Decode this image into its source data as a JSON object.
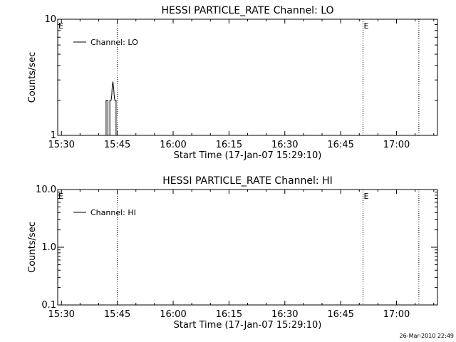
{
  "timestamp": "26-Mar-2010 22:49",
  "colors": {
    "background": "#ffffff",
    "foreground": "#000000"
  },
  "chart_data": [
    {
      "type": "line",
      "title": "HESSI PARTICLE_RATE Channel: LO",
      "xlabel": "Start Time (17-Jan-07 15:29:10)",
      "ylabel": "Counts/sec",
      "yscale": "log",
      "ylim": [
        1,
        10
      ],
      "yticks": [
        1,
        10
      ],
      "ytick_labels": [
        "1",
        "10"
      ],
      "xlim": [
        "15:29",
        "17:11"
      ],
      "xticks": [
        "15:30",
        "15:45",
        "16:00",
        "16:15",
        "16:30",
        "16:45",
        "17:00"
      ],
      "grid": false,
      "legend": {
        "position": "top-left",
        "entries": [
          "Channel: LO"
        ]
      },
      "vlines": [
        {
          "x": "15:45",
          "style": "dotted",
          "label": ""
        },
        {
          "x": "16:51",
          "style": "dotted",
          "label": "E"
        },
        {
          "x": "17:06",
          "style": "dotted",
          "label": ""
        }
      ],
      "edge_label": "E",
      "series": [
        {
          "name": "Channel: LO",
          "x": [
            "15:42:00",
            "15:42:00",
            "15:42:30",
            "15:42:30",
            "15:43:00",
            "15:43:00",
            "15:43:20",
            "15:43:30",
            "15:43:40",
            "15:43:50",
            "15:44:00",
            "15:44:10",
            "15:44:20",
            "15:44:40",
            "15:44:40",
            "15:45:00",
            "15:45:00"
          ],
          "y": [
            1.0,
            2.0,
            2.0,
            1.0,
            1.0,
            2.0,
            2.0,
            2.2,
            2.7,
            2.9,
            2.6,
            2.2,
            2.0,
            2.0,
            1.0,
            1.0,
            1.0
          ]
        }
      ]
    },
    {
      "type": "line",
      "title": "HESSI PARTICLE_RATE Channel: HI",
      "xlabel": "Start Time (17-Jan-07 15:29:10)",
      "ylabel": "Counts/sec",
      "yscale": "log",
      "ylim": [
        0.1,
        10
      ],
      "yticks": [
        0.1,
        1,
        10
      ],
      "ytick_labels": [
        "0.1",
        "1.0",
        "10.0"
      ],
      "xlim": [
        "15:29",
        "17:11"
      ],
      "xticks": [
        "15:30",
        "15:45",
        "16:00",
        "16:15",
        "16:30",
        "16:45",
        "17:00"
      ],
      "grid": false,
      "legend": {
        "position": "top-left",
        "entries": [
          "Channel: HI"
        ]
      },
      "vlines": [
        {
          "x": "15:45",
          "style": "dotted",
          "label": ""
        },
        {
          "x": "16:51",
          "style": "dotted",
          "label": "E"
        },
        {
          "x": "17:06",
          "style": "dotted",
          "label": ""
        }
      ],
      "edge_label": "E",
      "series": [
        {
          "name": "Channel: HI",
          "x": [],
          "y": []
        }
      ]
    }
  ]
}
